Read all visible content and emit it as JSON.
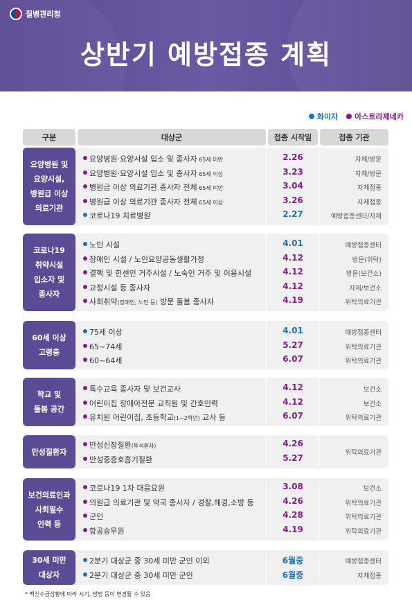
{
  "agency": "질병관리청",
  "title": "상반기 예방접종 계획",
  "legend": {
    "pfizer": "화이자",
    "az": "아스트라제네카"
  },
  "colors": {
    "pfizer": "#1b72b8",
    "az": "#8a1b8e",
    "category": "#5b4a94"
  },
  "headers": {
    "category": "구분",
    "target": "대상군",
    "date": "접종 시작일",
    "institution": "접종 기관"
  },
  "groups": [
    {
      "category": "요양병원 및\n요양시설,\n병원급 이상\n의료기관",
      "rows": [
        {
          "vaccine": "az",
          "target": "요양병원·요양시설 입소 및 종사자",
          "note": " 65세 미만",
          "date": "2.26",
          "institution": "자체/방문"
        },
        {
          "vaccine": "az",
          "target": "요양병원·요양시설 입소 및 종사자",
          "note": " 65세 이상",
          "date": "3.23",
          "institution": "자체/방문"
        },
        {
          "vaccine": "az",
          "target": "병원급 이상 의료기관 종사자 전체",
          "note": " 65세 미만",
          "date": "3.04",
          "institution": "자체접종"
        },
        {
          "vaccine": "az",
          "target": "병원급 이상 의료기관 종사자 전체",
          "note": " 65세 이상",
          "date": "3.26",
          "institution": "자체접종"
        },
        {
          "vaccine": "pfizer",
          "target": "코로나19 치료병원",
          "note": "",
          "date": "2.27",
          "institution": "예방접종센터/자체"
        }
      ]
    },
    {
      "category": "코로나19\n취약시설\n입소자 및\n종사자",
      "rows": [
        {
          "vaccine": "pfizer",
          "target": "노인 시설",
          "note": "",
          "date": "4.01",
          "institution": "예방접종센터"
        },
        {
          "vaccine": "az",
          "target": "장애인 시설 / 노인요양공동생활가정",
          "note": "",
          "date": "4.12",
          "institution": "방문(위탁)"
        },
        {
          "vaccine": "az",
          "target": "결핵 및 한센인 거주시설 / 노숙인 거주 및 이용시설",
          "note": "",
          "date": "4.12",
          "institution": "방문(보건소)"
        },
        {
          "vaccine": "az",
          "target": "교정시설 등 종사자",
          "note": "",
          "date": "4.12",
          "institution": "자체/보건소"
        },
        {
          "vaccine": "az",
          "target": "사회취약",
          "note": "(장애인, 노인 등)",
          "target_after": " 방문 돌봄 종사자",
          "date": "4.19",
          "institution": "위탁의료기관"
        }
      ]
    },
    {
      "category": "60세 이상\n고령층",
      "rows": [
        {
          "vaccine": "pfizer",
          "target": "75세 이상",
          "note": "",
          "date": "4.01",
          "institution": "예방접종센터"
        },
        {
          "vaccine": "az",
          "target": "65~74세",
          "note": "",
          "date": "5.27",
          "institution": "위탁의료기관"
        },
        {
          "vaccine": "az",
          "target": "60~64세",
          "note": "",
          "date": "6.07",
          "institution": "위탁의료기관"
        }
      ]
    },
    {
      "category": "학교 및\n돌봄 공간",
      "rows": [
        {
          "vaccine": "az",
          "target": "특수교육 종사자 및 보건교사",
          "note": "",
          "date": "4.12",
          "institution": "보건소"
        },
        {
          "vaccine": "az",
          "target": "어린이집 장애아전문 교직원 및 간호인력",
          "note": "",
          "date": "4.12",
          "institution": "보건소"
        },
        {
          "vaccine": "az",
          "target": "유치원 어린이집, 초등학교",
          "note": "(1~2학년)",
          "target_after": " 교사 등",
          "date": "6.07",
          "institution": "위탁의료기관"
        }
      ]
    },
    {
      "category": "만성질환자",
      "rows": [
        {
          "vaccine": "az",
          "target": "만성신장질환",
          "note": "(투석환자)",
          "date": "4.26",
          "institution": "위탁의료기관"
        },
        {
          "vaccine": "az",
          "target": "만성중증호흡기질환",
          "note": "",
          "date": "5.27",
          "institution": ""
        }
      ]
    },
    {
      "category": "보건의료인과\n사회필수\n인력 등",
      "rows": [
        {
          "vaccine": "az",
          "target": "코로나19 1차 대응요원",
          "note": "",
          "date": "3.08",
          "institution": "보건소"
        },
        {
          "vaccine": "az",
          "target": "의원급 의료기관 및 약국 종사자 / 경찰,해경,소방 등",
          "note": "",
          "date": "4.26",
          "institution": "위탁의료기관"
        },
        {
          "vaccine": "az",
          "target": "군인",
          "note": "",
          "date": "4.28",
          "institution": "위탁의료기관"
        },
        {
          "vaccine": "az",
          "target": "항공승무원",
          "note": "",
          "date": "4.19",
          "institution": "위탁의료기관"
        }
      ]
    },
    {
      "category": "30세 미만\n대상자",
      "rows": [
        {
          "vaccine": "pfizer",
          "target": "2분기 대상군 중 30세 미만 군인 이외",
          "note": "",
          "date": "6월중",
          "institution": "예방접종센터"
        },
        {
          "vaccine": "pfizer",
          "target": "2분기 대상군 중 30세 미만 군인",
          "note": "",
          "date": "6월중",
          "institution": "자체접종"
        }
      ]
    }
  ],
  "footnote": "* 백신수급상황에 따라 시기, 방법 등이 변경될 수 있음"
}
